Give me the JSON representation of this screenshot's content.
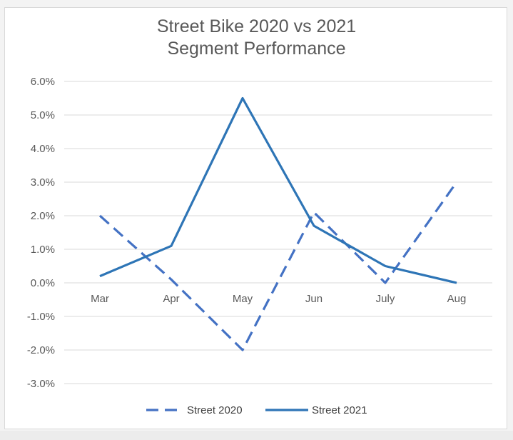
{
  "colors": {
    "series_2020": "#4472c4",
    "series_2021": "#2e75b6",
    "grid": "#d9d9d9",
    "text": "#595959"
  },
  "chart_data": {
    "type": "line",
    "title": [
      "Street Bike 2020 vs 2021",
      "Segment Performance"
    ],
    "categories": [
      "Mar",
      "Apr",
      "May",
      "Jun",
      "July",
      "Aug"
    ],
    "ylim": [
      -0.03,
      0.06
    ],
    "yticks": [
      "6.0%",
      "5.0%",
      "4.0%",
      "3.0%",
      "2.0%",
      "1.0%",
      "0.0%",
      "-1.0%",
      "-2.0%",
      "-3.0%"
    ],
    "ytick_values": [
      0.06,
      0.05,
      0.04,
      0.03,
      0.02,
      0.01,
      0.0,
      -0.01,
      -0.02,
      -0.03
    ],
    "grid": true,
    "legend": "bottom",
    "series": [
      {
        "name": "Street 2020",
        "style": "dashed",
        "values": [
          0.02,
          0.001,
          -0.02,
          0.021,
          0.0,
          0.03
        ]
      },
      {
        "name": "Street 2021",
        "style": "solid",
        "values": [
          0.002,
          0.011,
          0.055,
          0.017,
          0.005,
          0.0
        ]
      }
    ]
  }
}
